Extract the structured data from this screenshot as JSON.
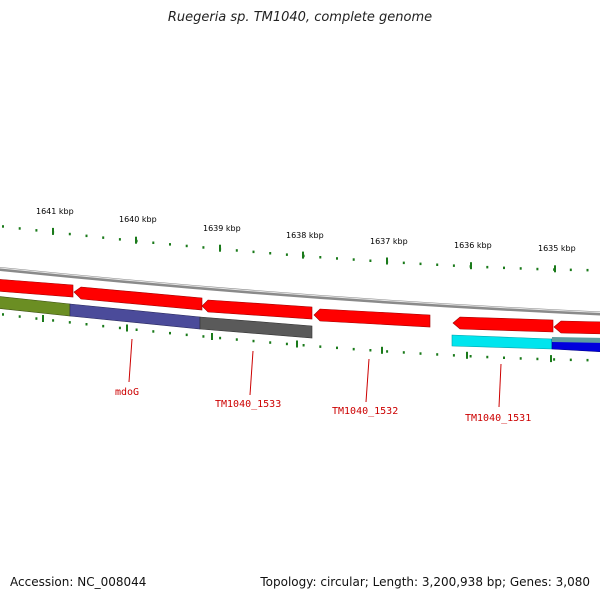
{
  "title": "Ruegeria sp. TM1040, complete genome",
  "accession_label": "Accession: NC_008044",
  "summary": "Topology: circular; Length: 3,200,938 bp; Genes: 3,080",
  "colors": {
    "backbone": "#909090",
    "forward_gene": "#ff0000",
    "tick": "#1a7a1a",
    "label": "#cc0000"
  },
  "ruler": {
    "ticks": [
      "1641 kbp",
      "1640 kbp",
      "1639 kbp",
      "1638 kbp",
      "1637 kbp",
      "1636 kbp",
      "1635 kbp"
    ]
  },
  "genes": [
    {
      "name": "mdoG",
      "color": "#4b4b9a"
    },
    {
      "name": "TM1040_1533",
      "color": "#5a5a5a"
    },
    {
      "name": "TM1040_1532",
      "color": "#ff0000"
    },
    {
      "name": "TM1040_1531",
      "color": "#00e5ee"
    }
  ]
}
